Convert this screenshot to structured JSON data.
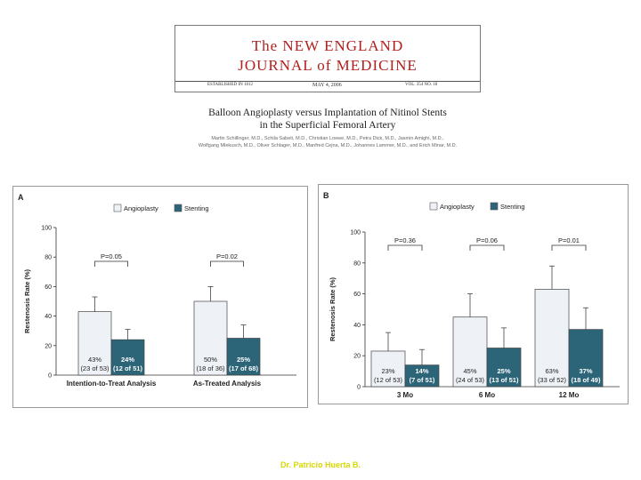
{
  "journal": {
    "name_line1": "The NEW ENGLAND",
    "name_line2": "JOURNAL of MEDICINE",
    "established": "ESTABLISHED IN 1812",
    "date": "MAY 4, 2006",
    "volume": "VOL. 354  NO. 18",
    "color": "#b0201e"
  },
  "article": {
    "title_line1": "Balloon Angioplasty versus Implantation of Nitinol Stents",
    "title_line2": "in the Superficial Femoral Artery",
    "authors_line1": "Martin Schillinger, M.D., Schila Sabeti, M.D., Christian Loewe, M.D., Petra Dick, M.D., Jasmin Amighi, M.D.,",
    "authors_line2": "Wolfgang Mlekusch, M.D., Oliver Schlager, M.D., Manfred Cejna, M.D., Johannes Lammer, M.D., and Erich Minar, M.D."
  },
  "footer": {
    "text": "Dr. Patricio Huerta B."
  },
  "colors": {
    "angioplasty": "#eef2f7",
    "stenting": "#2c6478"
  },
  "chart_data": [
    {
      "type": "bar",
      "panel_label": "A",
      "ylabel": "Restenosis Rate (%)",
      "ylim": [
        0,
        100
      ],
      "yticks": [
        0,
        20,
        40,
        60,
        80,
        100
      ],
      "categories": [
        "Intention-to-Treat Analysis",
        "As-Treated Analysis"
      ],
      "series": [
        {
          "name": "Angioplasty",
          "values": [
            43,
            50
          ],
          "error_upper": [
            53,
            60
          ],
          "labels_pct": [
            "43%",
            "50%"
          ],
          "labels_n": [
            "(23 of 53)",
            "(18 of 36)"
          ]
        },
        {
          "name": "Stenting",
          "values": [
            24,
            25
          ],
          "error_upper": [
            31,
            34
          ],
          "labels_pct": [
            "24%",
            "25%"
          ],
          "labels_n": [
            "(12 of 51)",
            "(17 of 68)"
          ]
        }
      ],
      "p_values": [
        "P=0.05",
        "P=0.02"
      ],
      "legend": "top-center"
    },
    {
      "type": "bar",
      "panel_label": "B",
      "ylabel": "Restenosis Rate (%)",
      "ylim": [
        0,
        100
      ],
      "yticks": [
        0,
        20,
        40,
        60,
        80,
        100
      ],
      "categories": [
        "3 Mo",
        "6 Mo",
        "12 Mo"
      ],
      "series": [
        {
          "name": "Angioplasty",
          "values": [
            23,
            45,
            63
          ],
          "error_upper": [
            35,
            60,
            78
          ],
          "labels_pct": [
            "23%",
            "45%",
            "63%"
          ],
          "labels_n": [
            "(12 of 53)",
            "(24 of 53)",
            "(33 of 52)"
          ]
        },
        {
          "name": "Stenting",
          "values": [
            14,
            25,
            37
          ],
          "error_upper": [
            24,
            38,
            51
          ],
          "labels_pct": [
            "14%",
            "25%",
            "37%"
          ],
          "labels_n": [
            "(7 of 51)",
            "(13 of 51)",
            "(18 of 49)"
          ]
        }
      ],
      "p_values": [
        "P=0.36",
        "P=0.06",
        "P=0.01"
      ],
      "legend": "top-center"
    }
  ]
}
